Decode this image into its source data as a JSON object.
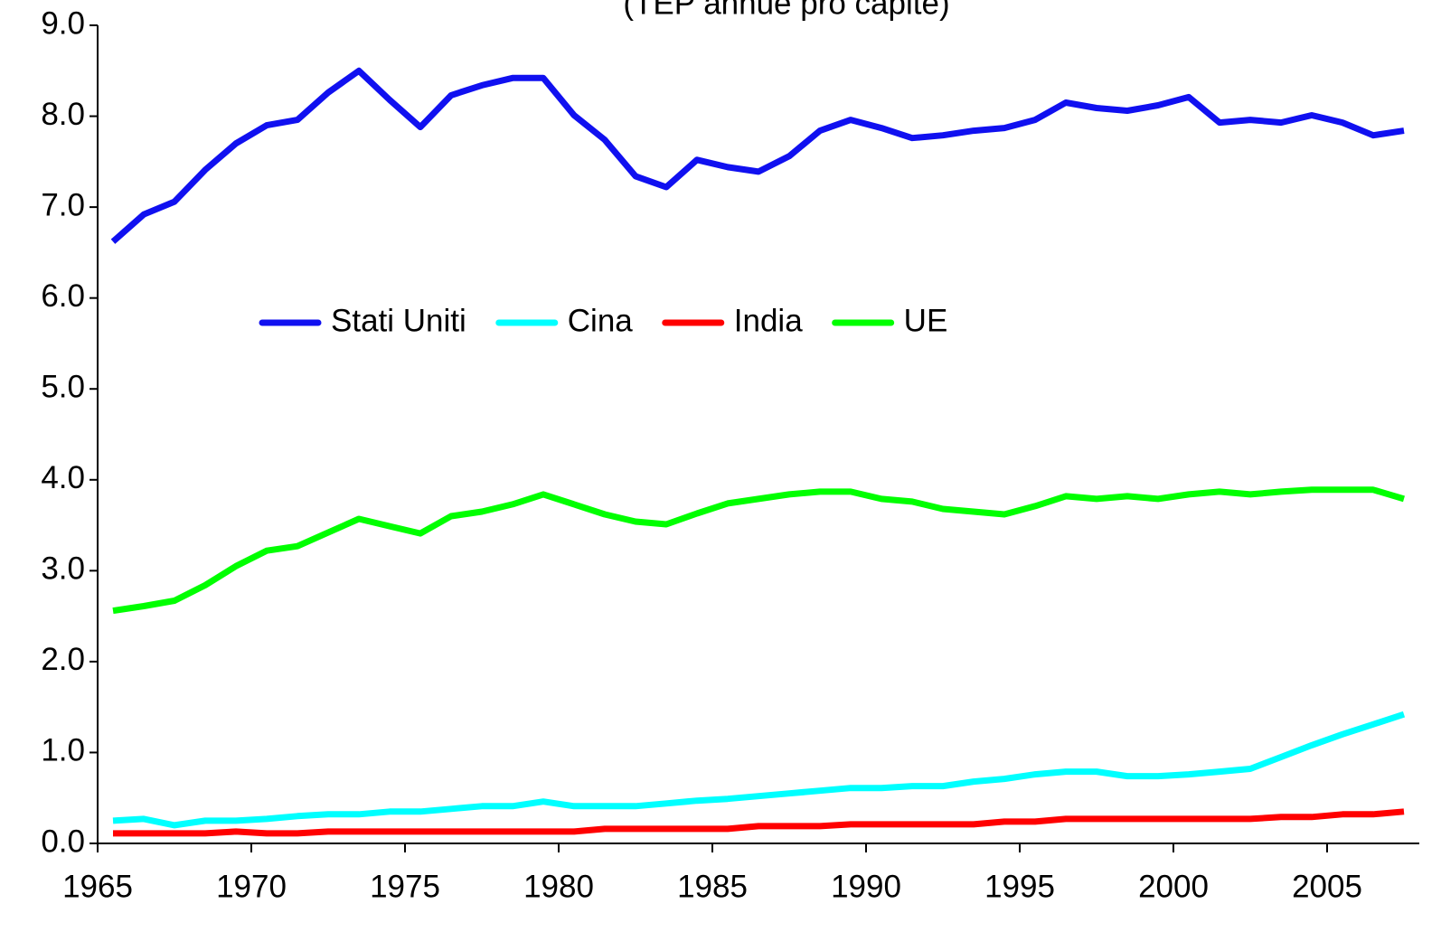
{
  "chart_data": {
    "type": "line",
    "title": "(TEP   annue pro capite)",
    "categories": [
      "1965",
      null,
      null,
      null,
      null,
      "1970",
      null,
      null,
      null,
      null,
      "1975",
      null,
      null,
      null,
      null,
      "1980",
      null,
      null,
      null,
      null,
      "1985",
      null,
      null,
      null,
      null,
      "1990",
      null,
      null,
      null,
      null,
      "1995",
      null,
      null,
      null,
      null,
      "2000",
      null,
      null,
      null,
      null,
      "2005",
      null,
      null
    ],
    "series": [
      {
        "name": "Stati Uniti",
        "color": "#1010f0",
        "values": [
          6.62,
          6.92,
          7.06,
          7.41,
          7.7,
          7.9,
          7.96,
          8.26,
          8.5,
          8.18,
          7.88,
          8.23,
          8.34,
          8.42,
          8.42,
          8.01,
          7.74,
          7.34,
          7.22,
          7.52,
          7.44,
          7.39,
          7.56,
          7.84,
          7.96,
          7.87,
          7.76,
          7.79,
          7.84,
          7.87,
          7.96,
          8.15,
          8.09,
          8.06,
          8.12,
          8.21,
          7.93,
          7.96,
          7.93,
          8.01,
          7.93,
          7.79,
          7.84
        ]
      },
      {
        "name": "Cina",
        "color": "#00ffff",
        "values": [
          0.25,
          0.27,
          0.2,
          0.25,
          0.25,
          0.27,
          0.3,
          0.32,
          0.32,
          0.35,
          0.35,
          0.38,
          0.41,
          0.41,
          0.46,
          0.41,
          0.41,
          0.41,
          0.44,
          0.47,
          0.49,
          0.52,
          0.55,
          0.58,
          0.61,
          0.61,
          0.63,
          0.63,
          0.68,
          0.71,
          0.76,
          0.79,
          0.79,
          0.74,
          0.74,
          0.76,
          0.79,
          0.82,
          0.95,
          1.08,
          1.2,
          1.31,
          1.42
        ]
      },
      {
        "name": "India",
        "color": "#ff0000",
        "values": [
          0.11,
          0.11,
          0.11,
          0.11,
          0.13,
          0.11,
          0.11,
          0.13,
          0.13,
          0.13,
          0.13,
          0.13,
          0.13,
          0.13,
          0.13,
          0.13,
          0.16,
          0.16,
          0.16,
          0.16,
          0.16,
          0.19,
          0.19,
          0.19,
          0.21,
          0.21,
          0.21,
          0.21,
          0.21,
          0.24,
          0.24,
          0.27,
          0.27,
          0.27,
          0.27,
          0.27,
          0.27,
          0.27,
          0.29,
          0.29,
          0.32,
          0.32,
          0.35
        ]
      },
      {
        "name": "UE",
        "color": "#00ff00",
        "values": [
          2.56,
          2.61,
          2.67,
          2.84,
          3.05,
          3.22,
          3.27,
          3.42,
          3.57,
          3.49,
          3.41,
          3.6,
          3.65,
          3.73,
          3.84,
          3.73,
          3.62,
          3.54,
          3.51,
          3.63,
          3.74,
          3.79,
          3.84,
          3.87,
          3.87,
          3.79,
          3.76,
          3.68,
          3.65,
          3.62,
          3.71,
          3.82,
          3.79,
          3.82,
          3.79,
          3.84,
          3.87,
          3.84,
          3.87,
          3.89,
          3.89,
          3.89,
          3.79
        ]
      }
    ],
    "ylim": [
      0,
      9
    ],
    "yticks": [
      {
        "value": 0,
        "label": "0.0"
      },
      {
        "value": 1,
        "label": "1.0"
      },
      {
        "value": 2,
        "label": "2.0"
      },
      {
        "value": 3,
        "label": "3.0"
      },
      {
        "value": 4,
        "label": "4.0"
      },
      {
        "value": 5,
        "label": "5.0"
      },
      {
        "value": 6,
        "label": "6.0"
      },
      {
        "value": 7,
        "label": "7.0"
      },
      {
        "value": 8,
        "label": "8.0"
      },
      {
        "value": 9,
        "label": "9.0"
      }
    ],
    "grid": false,
    "legend": "center-left"
  }
}
